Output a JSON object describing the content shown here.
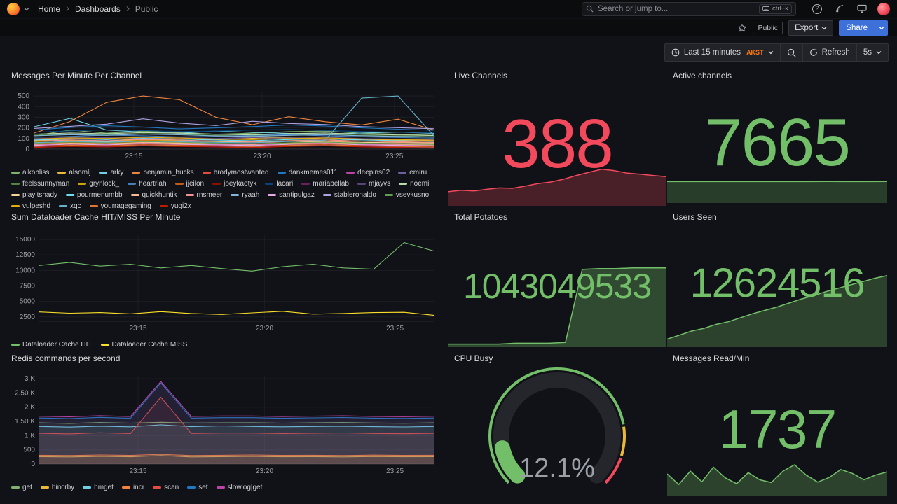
{
  "nav": {
    "breadcrumbs": [
      {
        "label": "Home"
      },
      {
        "label": "Dashboards"
      },
      {
        "label": "Public"
      }
    ],
    "search": {
      "placeholder": "Search or jump to...",
      "shortcut": "ctrl+k"
    }
  },
  "toolbar": {
    "tag": "Public",
    "export_label": "Export",
    "share_label": "Share"
  },
  "timebar": {
    "range_label": "Last 15 minutes",
    "timezone": "AKST",
    "refresh_label": "Refresh",
    "interval": "5s"
  },
  "chart_data": [
    {
      "type": "line",
      "title": "Messages Per Minute Per Channel",
      "ylim": [
        0,
        540
      ],
      "y_ticks": [
        {
          "v": 0,
          "label": "0"
        },
        {
          "v": 100,
          "label": "100"
        },
        {
          "v": 200,
          "label": "200"
        },
        {
          "v": 300,
          "label": "300"
        },
        {
          "v": 400,
          "label": "400"
        },
        {
          "v": 500,
          "label": "500"
        }
      ],
      "x_ticks": [
        {
          "pos": 0.25,
          "label": "23:15"
        },
        {
          "pos": 0.57,
          "label": "23:20"
        },
        {
          "pos": 0.9,
          "label": "23:25"
        }
      ],
      "fill": false,
      "series": [
        {
          "name": "alkobliss",
          "color": "#7EB26D",
          "values": [
            125,
            180,
            150,
            170,
            155,
            140,
            150,
            165,
            170,
            150,
            140,
            130
          ]
        },
        {
          "name": "alsomlj",
          "color": "#EAB839",
          "values": [
            80,
            95,
            100,
            85,
            95,
            88,
            102,
            110,
            95,
            88,
            84,
            78
          ]
        },
        {
          "name": "arky",
          "color": "#6ED0E0",
          "values": [
            210,
            290,
            180,
            160,
            150,
            170,
            158,
            148,
            140,
            152,
            160,
            148
          ]
        },
        {
          "name": "benjamin_bucks",
          "color": "#EF843C",
          "values": [
            150,
            260,
            440,
            500,
            465,
            300,
            230,
            305,
            258,
            228,
            282,
            178
          ]
        },
        {
          "name": "brodymostwanted",
          "color": "#E24D42",
          "values": [
            60,
            72,
            65,
            80,
            74,
            70,
            64,
            58,
            70,
            76,
            66,
            60
          ]
        },
        {
          "name": "dankmemes011",
          "color": "#1F78C1",
          "values": [
            180,
            205,
            220,
            208,
            190,
            200,
            212,
            228,
            218,
            200,
            188,
            178
          ]
        },
        {
          "name": "deepins02",
          "color": "#BA43A9",
          "values": [
            40,
            52,
            45,
            55,
            48,
            44,
            40,
            50,
            56,
            46,
            40,
            34
          ]
        },
        {
          "name": "emiru",
          "color": "#705DA0",
          "values": [
            92,
            100,
            112,
            104,
            96,
            100,
            110,
            116,
            106,
            96,
            90,
            84
          ]
        },
        {
          "name": "feelssunnyman",
          "color": "#508642",
          "values": [
            130,
            142,
            134,
            146,
            140,
            130,
            124,
            136,
            142,
            130,
            124,
            118
          ]
        },
        {
          "name": "grynlock_",
          "color": "#CCA300",
          "values": [
            70,
            82,
            75,
            86,
            80,
            74,
            70,
            80,
            86,
            76,
            70,
            64
          ]
        },
        {
          "name": "heartriah",
          "color": "#447EBC",
          "values": [
            112,
            120,
            132,
            126,
            116,
            120,
            130,
            136,
            126,
            116,
            110,
            104
          ]
        },
        {
          "name": "jjeilon",
          "color": "#C15C17",
          "values": [
            50,
            62,
            55,
            66,
            60,
            54,
            50,
            60,
            66,
            56,
            50,
            44
          ]
        },
        {
          "name": "joeykaotyk",
          "color": "#890F02",
          "values": [
            30,
            42,
            35,
            46,
            40,
            34,
            30,
            40,
            46,
            36,
            30,
            24
          ]
        },
        {
          "name": "lacari",
          "color": "#0A437C",
          "values": [
            160,
            172,
            182,
            176,
            166,
            170,
            180,
            186,
            176,
            166,
            160,
            154
          ]
        },
        {
          "name": "mariabellab",
          "color": "#6D1F62",
          "values": [
            20,
            32,
            25,
            36,
            30,
            24,
            20,
            30,
            36,
            26,
            20,
            14
          ]
        },
        {
          "name": "mjayvs",
          "color": "#584477",
          "values": [
            100,
            112,
            105,
            116,
            110,
            100,
            94,
            106,
            112,
            100,
            94,
            88
          ]
        },
        {
          "name": "noemi",
          "color": "#B7DBAB",
          "values": [
            140,
            152,
            145,
            156,
            150,
            140,
            134,
            146,
            152,
            140,
            134,
            128
          ]
        },
        {
          "name": "playitshady",
          "color": "#F4D598",
          "values": [
            60,
            66,
            70,
            68,
            64,
            66,
            70,
            73,
            68,
            64,
            60,
            57
          ]
        },
        {
          "name": "pourmenumbb",
          "color": "#70DBED",
          "values": [
            86,
            96,
            90,
            101,
            95,
            85,
            80,
            90,
            96,
            86,
            80,
            74
          ]
        },
        {
          "name": "quickhuntik",
          "color": "#F9BA8F",
          "values": [
            45,
            56,
            50,
            61,
            55,
            50,
            44,
            55,
            61,
            51,
            45,
            39
          ]
        },
        {
          "name": "rnsmeer",
          "color": "#F29191",
          "values": [
            75,
            86,
            80,
            91,
            85,
            75,
            70,
            80,
            86,
            76,
            70,
            64
          ]
        },
        {
          "name": "ryaah",
          "color": "#82B5D8",
          "values": [
            126,
            136,
            130,
            141,
            135,
            125,
            120,
            130,
            136,
            126,
            120,
            114
          ]
        },
        {
          "name": "santipulgaz",
          "color": "#E5A8E2",
          "values": [
            35,
            46,
            40,
            51,
            45,
            40,
            34,
            45,
            51,
            41,
            35,
            29
          ]
        },
        {
          "name": "stableronaldo",
          "color": "#AEA2E0",
          "values": [
            195,
            215,
            235,
            285,
            245,
            222,
            262,
            242,
            232,
            212,
            202,
            192
          ]
        },
        {
          "name": "vsevkusno",
          "color": "#629E51",
          "values": [
            55,
            66,
            60,
            71,
            65,
            55,
            50,
            60,
            66,
            56,
            50,
            44
          ]
        },
        {
          "name": "vulpeshd",
          "color": "#E5AC0E",
          "values": [
            95,
            106,
            100,
            111,
            105,
            95,
            90,
            100,
            106,
            96,
            90,
            84
          ]
        },
        {
          "name": "xqc",
          "color": "#64B0C8",
          "values": [
            60,
            72,
            65,
            76,
            70,
            64,
            60,
            72,
            82,
            480,
            500,
            120
          ]
        },
        {
          "name": "yourragegaming",
          "color": "#E0752D",
          "values": [
            25,
            36,
            30,
            41,
            35,
            30,
            24,
            35,
            41,
            31,
            25,
            19
          ]
        },
        {
          "name": "yugi2x",
          "color": "#BF1B00",
          "values": [
            15,
            26,
            20,
            31,
            25,
            20,
            14,
            25,
            31,
            21,
            15,
            9
          ]
        }
      ]
    },
    {
      "type": "line",
      "title": "Sum Dataloader Cache HIT/MISS Per Minute",
      "ylim": [
        1800,
        15800
      ],
      "y_ticks": [
        {
          "v": 2500,
          "label": "2500"
        },
        {
          "v": 5000,
          "label": "5000"
        },
        {
          "v": 7500,
          "label": "7500"
        },
        {
          "v": 10000,
          "label": "10000"
        },
        {
          "v": 12500,
          "label": "12500"
        },
        {
          "v": 15000,
          "label": "15000"
        }
      ],
      "x_ticks": [
        {
          "pos": 0.25,
          "label": "23:15"
        },
        {
          "pos": 0.57,
          "label": "23:20"
        },
        {
          "pos": 0.9,
          "label": "23:25"
        }
      ],
      "fill": false,
      "series": [
        {
          "name": "Dataloader Cache HIT",
          "color": "#73BF69",
          "values": [
            10800,
            11300,
            10700,
            11000,
            10400,
            10800,
            10300,
            9900,
            10600,
            11000,
            10400,
            10200,
            14500,
            13100
          ]
        },
        {
          "name": "Dataloader Cache MISS",
          "color": "#FADE2A",
          "values": [
            3300,
            3100,
            3200,
            3000,
            3350,
            3050,
            2900,
            3150,
            3400,
            2950,
            3050,
            3200,
            3250,
            2750
          ]
        }
      ]
    },
    {
      "type": "line",
      "title": "Redis commands per second",
      "ylim": [
        0,
        3100
      ],
      "y_ticks": [
        {
          "v": 0,
          "label": "0"
        },
        {
          "v": 500,
          "label": "500"
        },
        {
          "v": 1000,
          "label": "1 K"
        },
        {
          "v": 1500,
          "label": "1.50 K"
        },
        {
          "v": 2000,
          "label": "2 K"
        },
        {
          "v": 2500,
          "label": "2.50 K"
        },
        {
          "v": 3000,
          "label": "3 K"
        }
      ],
      "x_ticks": [
        {
          "pos": 0.25,
          "label": "23:15"
        },
        {
          "pos": 0.57,
          "label": "23:20"
        },
        {
          "pos": 0.9,
          "label": "23:25"
        }
      ],
      "fill": true,
      "series": [
        {
          "name": "get",
          "color": "#7EB26D",
          "values": [
            1450,
            1430,
            1460,
            1440,
            1470,
            1445,
            1450,
            1455,
            1440,
            1450,
            1460,
            1445,
            1435,
            1450
          ]
        },
        {
          "name": "hincrby",
          "color": "#EAB839",
          "values": [
            260,
            250,
            270,
            255,
            300,
            250,
            260,
            270,
            255,
            260,
            250,
            265,
            255,
            260
          ]
        },
        {
          "name": "hmget",
          "color": "#6ED0E0",
          "values": [
            1320,
            1300,
            1330,
            1310,
            1380,
            1315,
            1340,
            1320,
            1310,
            1320,
            1330,
            1315,
            1305,
            1320
          ]
        },
        {
          "name": "incr",
          "color": "#EF843C",
          "values": [
            310,
            300,
            320,
            305,
            340,
            300,
            310,
            320,
            305,
            310,
            300,
            315,
            305,
            310
          ]
        },
        {
          "name": "scan",
          "color": "#E24D42",
          "values": [
            1080,
            1060,
            1100,
            1070,
            2350,
            1075,
            1090,
            1090,
            1070,
            1085,
            1095,
            1075,
            1065,
            1080
          ]
        },
        {
          "name": "set",
          "color": "#1F78C1",
          "values": [
            1620,
            1600,
            1640,
            1610,
            2850,
            1615,
            1630,
            1630,
            1610,
            1625,
            1635,
            1615,
            1605,
            1620
          ]
        },
        {
          "name": "slowlog|get",
          "color": "#BA43A9",
          "values": [
            1680,
            1660,
            1700,
            1670,
            2900,
            1675,
            1690,
            1690,
            1670,
            1685,
            1695,
            1675,
            1665,
            1680
          ]
        }
      ]
    },
    {
      "type": "stat",
      "title": "Live Channels",
      "value": "388",
      "color": "#F2495C",
      "spark": {
        "values": [
          150,
          165,
          158,
          175,
          190,
          185,
          208,
          236,
          252,
          282,
          322,
          356,
          388,
          372,
          346,
          336,
          322,
          310
        ],
        "ylim": [
          0,
          430
        ],
        "fill_opacity": 0.25
      }
    },
    {
      "type": "stat",
      "title": "Active channels",
      "value": "7665",
      "color": "#73BF69",
      "spark": {
        "values": [
          7640,
          7650,
          7645,
          7655,
          7660,
          7650,
          7658,
          7662,
          7665,
          7660,
          7655,
          7665
        ],
        "ylim": [
          0,
          9000
        ],
        "fill_opacity": 0.25
      }
    },
    {
      "type": "stat",
      "title": "Total Potatoes",
      "value": "1043049533",
      "color": "#73BF69",
      "spark": {
        "values": [
          4,
          4,
          4,
          4,
          5,
          5,
          5,
          6,
          100,
          101,
          101,
          102,
          102,
          102
        ],
        "ylim": [
          0,
          108
        ],
        "fill_opacity": 0.32
      }
    },
    {
      "type": "stat",
      "title": "Users Seen",
      "value": "12624516",
      "color": "#73BF69",
      "spark": {
        "values": [
          12,
          18,
          24,
          28,
          34,
          38,
          44,
          50,
          55,
          60,
          66,
          72,
          77,
          83,
          88,
          93,
          98,
          103,
          107
        ],
        "ylim": [
          0,
          115
        ],
        "fill_opacity": 0.28
      }
    },
    {
      "type": "gauge",
      "title": "CPU Busy",
      "value": 12.1,
      "display": "12.1%",
      "min": 0,
      "max": 100,
      "color": "#73BF69",
      "thresholds": [
        {
          "value": 0,
          "color": "#73BF69"
        },
        {
          "value": 80,
          "color": "#EAB839"
        },
        {
          "value": 90,
          "color": "#F2495C"
        }
      ]
    },
    {
      "type": "stat",
      "title": "Messages Read/Min",
      "value": "1737",
      "color": "#73BF69",
      "spark": {
        "values": [
          55,
          28,
          62,
          35,
          72,
          45,
          30,
          58,
          40,
          33,
          62,
          78,
          52,
          34,
          46,
          66,
          56,
          40,
          52,
          60
        ],
        "ylim": [
          0,
          110
        ],
        "fill_opacity": 0.28
      }
    }
  ]
}
